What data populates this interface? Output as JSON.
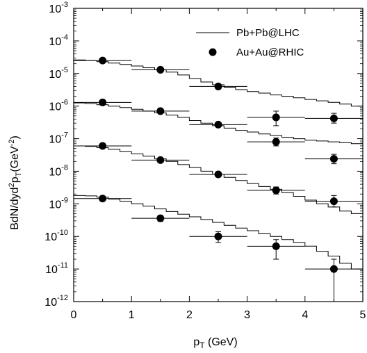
{
  "chart_data": {
    "type": "scatter",
    "xlabel_main": "p",
    "xlabel_sub": "T",
    "xlabel_rest": " (GeV)",
    "ylabel_parts": {
      "a": "BdN/dyd",
      "b": "2",
      "c": "p",
      "d": "T",
      "e": "(GeV",
      "f": "-2",
      "g": ")"
    },
    "xlim": [
      0,
      5
    ],
    "ylim_log10": [
      -12,
      -3
    ],
    "x_ticks": [
      {
        "v": 0,
        "label": "0"
      },
      {
        "v": 1,
        "label": "1"
      },
      {
        "v": 2,
        "label": "2"
      },
      {
        "v": 3,
        "label": "3"
      },
      {
        "v": 4,
        "label": "4"
      },
      {
        "v": 5,
        "label": "5"
      }
    ],
    "y_ticks": [
      {
        "exp": -3,
        "base": "10",
        "sup": "-3"
      },
      {
        "exp": -4,
        "base": "10",
        "sup": "-4"
      },
      {
        "exp": -5,
        "base": "10",
        "sup": "-5"
      },
      {
        "exp": -6,
        "base": "10",
        "sup": "-6"
      },
      {
        "exp": -7,
        "base": "10",
        "sup": "-7"
      },
      {
        "exp": -8,
        "base": "10",
        "sup": "-8"
      },
      {
        "exp": -9,
        "base": "10",
        "sup": "-9"
      },
      {
        "exp": -10,
        "base": "10",
        "sup": "-10"
      },
      {
        "exp": -11,
        "base": "10",
        "sup": "-11"
      },
      {
        "exp": -12,
        "base": "10",
        "sup": "-12"
      }
    ],
    "legend": {
      "placement": "top-right",
      "line_label": "Pb+Pb@LHC",
      "marker_label": "Au+Au@RHIC"
    },
    "histograms": [
      {
        "bin_width": 0.2,
        "values": [
          2.6e-05,
          2.5e-05,
          2.3e-05,
          2.1e-05,
          1.9e-05,
          1.7e-05,
          1.5e-05,
          1.3e-05,
          1.1e-05,
          9e-06,
          7e-06,
          5.5e-06,
          4.5e-06,
          3.8e-06,
          3.2e-06,
          2.8e-06,
          2.5e-06,
          2.2e-06,
          2e-06,
          1.8e-06,
          1.6e-06,
          1.45e-06,
          1.3e-06,
          1.15e-06,
          1e-06
        ]
      },
      {
        "bin_width": 0.2,
        "values": [
          1.25e-06,
          1.2e-06,
          1.1e-06,
          1e-06,
          9e-07,
          8e-07,
          7e-07,
          6.2e-07,
          5.3e-07,
          4.5e-07,
          3.6e-07,
          3e-07,
          2.5e-07,
          2.1e-07,
          1.8e-07,
          1.6e-07,
          1.4e-07,
          1.25e-07,
          1.1e-07,
          1e-07,
          9e-08,
          8.5e-08,
          8e-08,
          7.5e-08,
          7e-08
        ]
      },
      {
        "bin_width": 0.2,
        "values": [
          6e-08,
          5.8e-08,
          5.3e-08,
          4.7e-08,
          4e-08,
          3.4e-08,
          2.9e-08,
          2.4e-08,
          2e-08,
          1.6e-08,
          1.3e-08,
          1e-08,
          8e-09,
          6.5e-09,
          5.2e-09,
          4.2e-09,
          3.4e-09,
          2.8e-09,
          2.2e-09,
          1.7e-09,
          1.3e-09,
          1e-09,
          8e-10,
          6e-10,
          5e-10
        ]
      },
      {
        "bin_width": 0.2,
        "values": [
          1.8e-09,
          1.75e-09,
          1.6e-09,
          1.4e-09,
          1.2e-09,
          1e-09,
          8.5e-10,
          7e-10,
          5.8e-10,
          4.8e-10,
          4e-10,
          3.3e-10,
          2.7e-10,
          2.2e-10,
          1.8e-10,
          1.5e-10,
          1.2e-10,
          1e-10,
          8e-11,
          6.5e-11,
          5e-11,
          3.5e-11,
          2.5e-11,
          1.5e-11,
          1e-11
        ]
      }
    ],
    "points": [
      {
        "x": 0.5,
        "y": 2.5e-05,
        "ylo": 2.3e-05,
        "yhi": 2.7e-05,
        "xlo": 0,
        "xhi": 1
      },
      {
        "x": 1.5,
        "y": 1.3e-05,
        "ylo": 1.2e-05,
        "yhi": 1.4e-05,
        "xlo": 1,
        "xhi": 2
      },
      {
        "x": 2.5,
        "y": 4e-06,
        "ylo": 3.4e-06,
        "yhi": 4.7e-06,
        "xlo": 2,
        "xhi": 3
      },
      {
        "x": 3.5,
        "y": 4.5e-07,
        "ylo": 2.5e-07,
        "yhi": 7e-07,
        "xlo": 3,
        "xhi": 4
      },
      {
        "x": 4.5,
        "y": 4.2e-07,
        "ylo": 3e-07,
        "yhi": 6e-07,
        "xlo": 4,
        "xhi": 5
      },
      {
        "x": 0.5,
        "y": 1.3e-06,
        "ylo": 1.2e-06,
        "yhi": 1.4e-06,
        "xlo": 0,
        "xhi": 1
      },
      {
        "x": 1.5,
        "y": 7e-07,
        "ylo": 6.3e-07,
        "yhi": 7.7e-07,
        "xlo": 1,
        "xhi": 2
      },
      {
        "x": 2.5,
        "y": 2.7e-07,
        "ylo": 2.3e-07,
        "yhi": 3.1e-07,
        "xlo": 2,
        "xhi": 3
      },
      {
        "x": 3.5,
        "y": 8e-08,
        "ylo": 6e-08,
        "yhi": 1.05e-07,
        "xlo": 3,
        "xhi": 4
      },
      {
        "x": 4.5,
        "y": 2.4e-08,
        "ylo": 1.7e-08,
        "yhi": 3.3e-08,
        "xlo": 4,
        "xhi": 5
      },
      {
        "x": 0.5,
        "y": 6e-08,
        "ylo": 5.4e-08,
        "yhi": 6.6e-08,
        "xlo": 0,
        "xhi": 1
      },
      {
        "x": 1.5,
        "y": 2.2e-08,
        "ylo": 1.95e-08,
        "yhi": 2.45e-08,
        "xlo": 1,
        "xhi": 2
      },
      {
        "x": 2.5,
        "y": 8e-09,
        "ylo": 6.8e-09,
        "yhi": 9.4e-09,
        "xlo": 2,
        "xhi": 3
      },
      {
        "x": 3.5,
        "y": 2.6e-09,
        "ylo": 2e-09,
        "yhi": 3.3e-09,
        "xlo": 3,
        "xhi": 4
      },
      {
        "x": 4.5,
        "y": 1.2e-09,
        "ylo": 8e-10,
        "yhi": 1.8e-09,
        "xlo": 4,
        "xhi": 5
      },
      {
        "x": 0.5,
        "y": 1.45e-09,
        "ylo": 1.3e-09,
        "yhi": 1.6e-09,
        "xlo": 0,
        "xhi": 1
      },
      {
        "x": 1.5,
        "y": 3.6e-10,
        "ylo": 2.9e-10,
        "yhi": 4.4e-10,
        "xlo": 1,
        "xhi": 2
      },
      {
        "x": 2.5,
        "y": 1e-10,
        "ylo": 6.5e-11,
        "yhi": 1.4e-10,
        "xlo": 2,
        "xhi": 3
      },
      {
        "x": 3.5,
        "y": 5e-11,
        "ylo": 2e-11,
        "yhi": 8e-11,
        "xlo": 3,
        "xhi": 4
      },
      {
        "x": 4.5,
        "y": 1e-11,
        "ylo": 1e-12,
        "yhi": 2e-11,
        "xlo": 4,
        "xhi": 5
      }
    ]
  }
}
